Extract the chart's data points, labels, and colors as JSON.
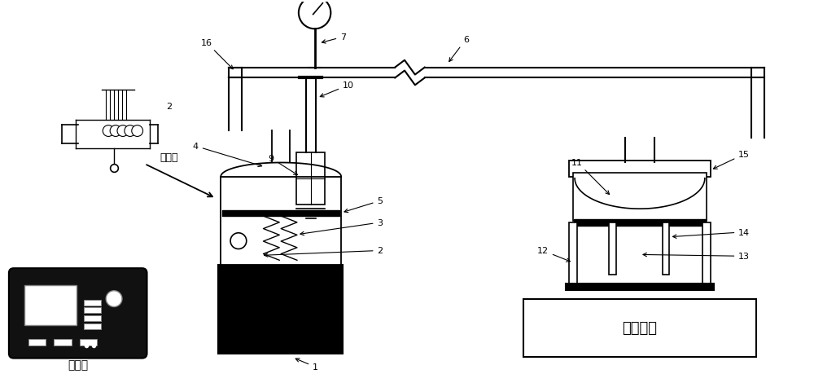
{
  "bg_color": "#ffffff",
  "labels": {
    "signal_source": "信号源",
    "power_amp": "经功放",
    "human_tissue": "人体组织"
  }
}
